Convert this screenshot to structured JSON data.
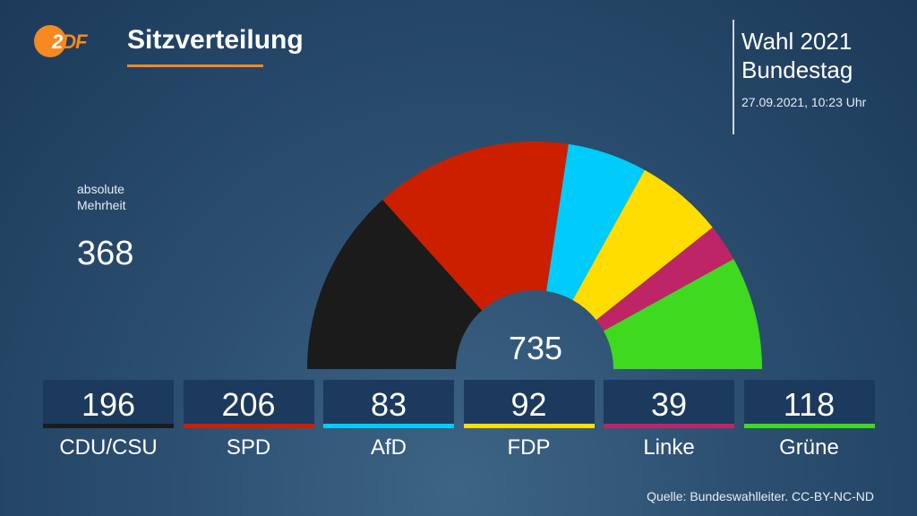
{
  "header": {
    "logo": "ZDF",
    "title": "Sitzverteilung",
    "election_line1": "Wahl 2021",
    "election_line2": "Bundestag",
    "timestamp": "27.09.2021, 10:23 Uhr"
  },
  "majority": {
    "label_line1": "absolute",
    "label_line2": "Mehrheit",
    "value": "368"
  },
  "total_seats": "735",
  "source": "Quelle: Bundeswahlleiter. CC-BY-NC-ND",
  "chart_data": {
    "type": "pie",
    "subtype": "semicircle-parliament",
    "title": "Sitzverteilung",
    "total": 735,
    "majority": 368,
    "categories": [
      "CDU/CSU",
      "SPD",
      "AfD",
      "FDP",
      "Linke",
      "Grüne"
    ],
    "values": [
      196,
      206,
      83,
      92,
      39,
      118
    ],
    "colors": [
      "#1b1b1b",
      "#cc1f00",
      "#00ccfb",
      "#ffdd00",
      "#be2566",
      "#3fd91f"
    ]
  }
}
